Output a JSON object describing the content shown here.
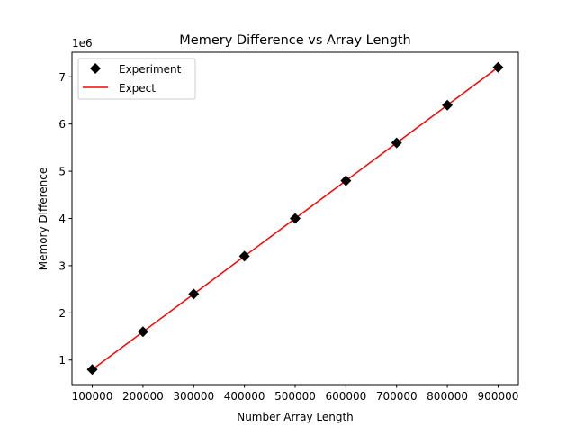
{
  "chart_data": {
    "type": "line",
    "title": "Memery Difference vs Array Length",
    "xlabel": "Number Array Length",
    "ylabel": "Memory Difference",
    "y_offset_label": "1e6",
    "xlim": [
      60000,
      940000
    ],
    "ylim": [
      480000,
      7520000
    ],
    "x_ticks": [
      100000,
      200000,
      300000,
      400000,
      500000,
      600000,
      700000,
      800000,
      900000
    ],
    "x_tick_labels": [
      "100000",
      "200000",
      "300000",
      "400000",
      "500000",
      "600000",
      "700000",
      "800000",
      "900000"
    ],
    "y_ticks": [
      1000000,
      2000000,
      3000000,
      4000000,
      5000000,
      6000000,
      7000000
    ],
    "y_tick_labels": [
      "1",
      "2",
      "3",
      "4",
      "5",
      "6",
      "7"
    ],
    "grid": false,
    "legend_position": "top-left",
    "series": [
      {
        "name": "Experiment",
        "style": "markers",
        "marker": "diamond",
        "color": "#000000",
        "x": [
          100000,
          200000,
          300000,
          400000,
          500000,
          600000,
          700000,
          800000,
          900000
        ],
        "y": [
          800000,
          1600000,
          2400000,
          3200000,
          4000000,
          4800000,
          5600000,
          6400000,
          7200000
        ]
      },
      {
        "name": "Expect",
        "style": "line",
        "color": "#ff0000",
        "x": [
          100000,
          200000,
          300000,
          400000,
          500000,
          600000,
          700000,
          800000,
          900000
        ],
        "y": [
          800000,
          1600000,
          2400000,
          3200000,
          4000000,
          4800000,
          5600000,
          6400000,
          7200000
        ]
      }
    ]
  }
}
